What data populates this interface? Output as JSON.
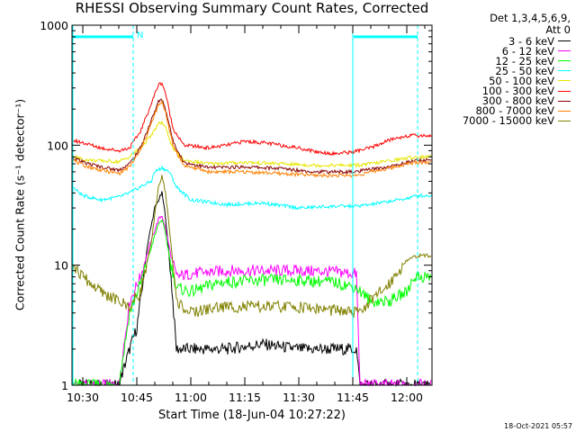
{
  "title": "RHESSI Observing Summary Count Rates, Corrected",
  "footer": "18-Oct-2021 05:57",
  "chart_data": {
    "type": "line",
    "title": "RHESSI Observing Summary Count Rates, Corrected",
    "xlabel": "Start Time (18-Jun-04 10:27:22)",
    "ylabel": "Corrected Count Rate (s⁻¹ detector⁻¹)",
    "yscale": "log",
    "ylim": [
      1,
      1000
    ],
    "xlim_minutes_after_1030": [
      -3,
      97
    ],
    "x_ticks": [
      {
        "label": "10:30",
        "t": 0
      },
      {
        "label": "10:45",
        "t": 15
      },
      {
        "label": "11:00",
        "t": 30
      },
      {
        "label": "11:15",
        "t": 45
      },
      {
        "label": "11:30",
        "t": 60
      },
      {
        "label": "11:45",
        "t": 75
      },
      {
        "label": "12:00",
        "t": 90
      }
    ],
    "y_ticks": [
      {
        "label": "1",
        "v": 1
      },
      {
        "label": "10",
        "v": 10
      },
      {
        "label": "100",
        "v": 100
      },
      {
        "label": "1000",
        "v": 1000
      }
    ],
    "legend_header": [
      "Det 1,3,4,5,6,9,",
      "Att 0"
    ],
    "annotation": "N",
    "night_markers": {
      "segment_1": [
        -3,
        14
      ],
      "segment_2": [
        75,
        93
      ],
      "level": 800
    },
    "series": [
      {
        "name": "3 - 6 keV",
        "color": "#000000",
        "t": [
          -3,
          10,
          13,
          15,
          16,
          18,
          20,
          22,
          23,
          24.5,
          26,
          30,
          40,
          50,
          60,
          70,
          76,
          77
        ],
        "values": [
          1,
          1,
          2,
          3,
          5,
          15,
          30,
          40,
          25,
          8,
          2,
          2,
          2,
          2.2,
          2,
          2,
          2,
          1
        ]
      },
      {
        "name": "6 - 12 keV",
        "color": "#ff00ff",
        "t": [
          -3,
          10,
          13,
          16,
          19,
          21,
          22,
          23,
          24.5,
          26,
          30,
          40,
          50,
          60,
          70,
          76,
          77
        ],
        "values": [
          1,
          1,
          5,
          8,
          16,
          24,
          26,
          20,
          12,
          8,
          8.5,
          9,
          9,
          9,
          8.8,
          8.5,
          1
        ]
      },
      {
        "name": "12 - 25 keV",
        "color": "#00ff00",
        "t": [
          -3,
          10,
          13,
          16,
          19,
          21,
          22,
          23,
          24.5,
          26,
          30,
          38,
          50,
          60,
          70,
          76,
          80,
          85,
          90,
          92
        ],
        "values": [
          1,
          1,
          4,
          7,
          14,
          22,
          24,
          18,
          10,
          6.5,
          6,
          7.2,
          7.5,
          7.5,
          7.2,
          6.5,
          5,
          5,
          6,
          8
        ]
      },
      {
        "name": "25 - 50 keV",
        "color": "#00ffff",
        "t": [
          -3,
          0,
          5,
          10,
          13,
          16,
          19,
          20,
          22,
          24,
          26,
          30,
          40,
          50,
          60,
          70,
          76,
          80,
          85,
          90,
          93
        ],
        "values": [
          45,
          38,
          35,
          37,
          40,
          45,
          50,
          60,
          65,
          60,
          45,
          35,
          32,
          33,
          30,
          31,
          31,
          32,
          34,
          36,
          38
        ]
      },
      {
        "name": "50 - 100 keV",
        "color": "#e6e600",
        "t": [
          -3,
          0,
          5,
          10,
          13,
          16,
          19,
          21,
          22,
          23,
          25,
          28,
          35,
          45,
          55,
          65,
          70,
          76,
          80,
          85,
          90,
          93
        ],
        "values": [
          82,
          76,
          74,
          73,
          80,
          95,
          120,
          150,
          155,
          140,
          95,
          75,
          70,
          72,
          70,
          68,
          68,
          68,
          70,
          74,
          78,
          80
        ]
      },
      {
        "name": "100 - 300 keV",
        "color": "#ff0000",
        "t": [
          -3,
          0,
          5,
          10,
          13,
          16,
          19,
          21,
          22,
          23,
          25,
          28,
          35,
          40,
          45,
          50,
          55,
          60,
          65,
          70,
          75,
          80,
          85,
          90,
          93
        ],
        "values": [
          110,
          105,
          95,
          90,
          95,
          130,
          220,
          320,
          330,
          270,
          140,
          100,
          95,
          100,
          108,
          105,
          100,
          95,
          88,
          85,
          88,
          95,
          110,
          120,
          120
        ]
      },
      {
        "name": "300 - 800 keV",
        "color": "#880000",
        "t": [
          -3,
          0,
          5,
          10,
          13,
          16,
          19,
          21,
          22,
          23,
          25,
          28,
          35,
          45,
          55,
          65,
          70,
          76,
          80,
          85,
          90,
          93
        ],
        "values": [
          80,
          72,
          66,
          62,
          70,
          95,
          160,
          230,
          240,
          200,
          110,
          72,
          65,
          66,
          64,
          60,
          60,
          60,
          63,
          66,
          72,
          75
        ]
      },
      {
        "name": "800 - 7000 keV",
        "color": "#ff8000",
        "t": [
          -3,
          0,
          5,
          10,
          13,
          16,
          19,
          21,
          22,
          23,
          25,
          28,
          35,
          45,
          55,
          65,
          70,
          76,
          80,
          85,
          90,
          93
        ],
        "values": [
          76,
          68,
          62,
          58,
          66,
          90,
          150,
          215,
          225,
          190,
          100,
          68,
          60,
          60,
          58,
          56,
          56,
          56,
          60,
          64,
          70,
          72
        ]
      },
      {
        "name": "7000 - 15000 keV",
        "color": "#808000",
        "t": [
          -3,
          0,
          5,
          10,
          13,
          16,
          19,
          21,
          22,
          23,
          24.5,
          26,
          30,
          38,
          50,
          60,
          70,
          76,
          80,
          85,
          90,
          93
        ],
        "values": [
          10,
          8,
          6,
          5,
          4.5,
          6,
          15,
          45,
          55,
          40,
          15,
          5,
          4,
          4.5,
          4.5,
          4.5,
          4.2,
          4,
          5,
          7,
          11,
          12
        ]
      }
    ]
  }
}
